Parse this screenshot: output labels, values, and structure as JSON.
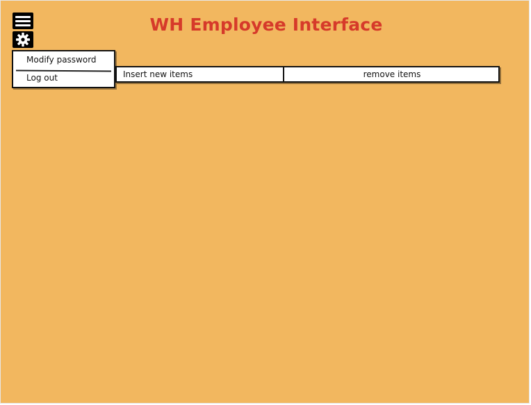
{
  "header": {
    "title": "WH Employee Interface"
  },
  "icons": {
    "menu": "hamburger-menu-icon",
    "settings": "gear-icon"
  },
  "settings_menu": {
    "items": [
      {
        "label": "Modify password"
      },
      {
        "label": "Log out"
      }
    ]
  },
  "tabs": [
    {
      "label": "Insert new items"
    },
    {
      "label": "remove items"
    }
  ],
  "colors": {
    "background": "#f2b75f",
    "title": "#d63a2a",
    "panel": "#ffffff",
    "border": "#111111"
  }
}
